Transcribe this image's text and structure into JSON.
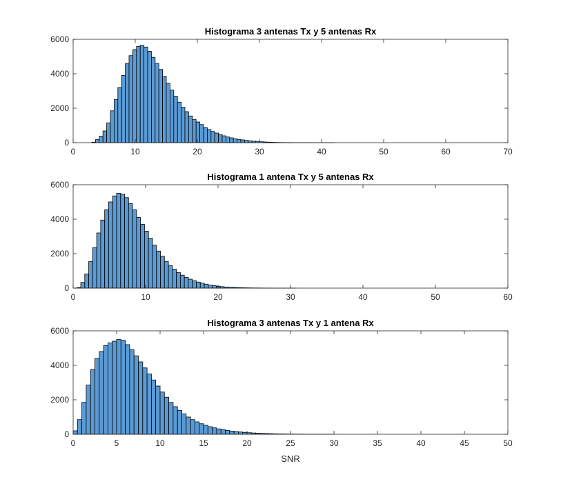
{
  "figure": {
    "background": "#ffffff"
  },
  "chart_data": [
    {
      "type": "bar",
      "subtype": "histogram",
      "title": "Histograma 3 antenas Tx y 5 antenas Rx",
      "xlabel": "",
      "ylabel": "",
      "xlim": [
        0,
        70
      ],
      "ylim": [
        0,
        6000
      ],
      "xticks": [
        0,
        10,
        20,
        30,
        40,
        50,
        60,
        70
      ],
      "yticks": [
        0,
        2000,
        4000,
        6000
      ],
      "grid": false,
      "bar_color": "#5b9bd5",
      "edge_color": "#000000",
      "bin_start": 3.0,
      "bin_width": 0.6,
      "values": [
        30,
        180,
        380,
        680,
        1150,
        1850,
        2500,
        3200,
        3900,
        4600,
        5050,
        5400,
        5580,
        5650,
        5550,
        5300,
        4950,
        4600,
        4250,
        3850,
        3450,
        3050,
        2700,
        2350,
        2050,
        1800,
        1550,
        1350,
        1200,
        1050,
        880,
        760,
        650,
        560,
        470,
        400,
        330,
        280,
        230,
        190,
        160,
        130,
        110,
        90,
        70,
        55,
        40,
        30,
        20,
        15,
        10,
        8,
        6,
        5,
        4,
        3,
        3,
        2,
        2,
        1,
        1,
        1,
        1,
        1,
        1
      ]
    },
    {
      "type": "bar",
      "subtype": "histogram",
      "title": "Histograma 1 antena Tx y 5 antenas Rx",
      "xlabel": "",
      "ylabel": "",
      "xlim": [
        0,
        60
      ],
      "ylim": [
        0,
        6000
      ],
      "xticks": [
        0,
        10,
        20,
        30,
        40,
        50,
        60
      ],
      "yticks": [
        0,
        2000,
        4000,
        6000
      ],
      "grid": false,
      "bar_color": "#5b9bd5",
      "edge_color": "#000000",
      "bin_start": 0.5,
      "bin_width": 0.55,
      "values": [
        30,
        330,
        820,
        1550,
        2350,
        3200,
        3950,
        4550,
        5000,
        5350,
        5500,
        5450,
        5250,
        4900,
        4550,
        4100,
        3700,
        3300,
        2900,
        2500,
        2150,
        1850,
        1550,
        1300,
        1100,
        900,
        750,
        620,
        520,
        430,
        350,
        290,
        230,
        180,
        140,
        110,
        85,
        65,
        50,
        40,
        30,
        24,
        18,
        14,
        10,
        8,
        6,
        5,
        4,
        3,
        2,
        2,
        2,
        1,
        1
      ]
    },
    {
      "type": "bar",
      "subtype": "histogram",
      "title": "Histograma 3 antenas Tx y 1 antena Rx",
      "xlabel": "SNR",
      "ylabel": "",
      "xlim": [
        0,
        50
      ],
      "ylim": [
        0,
        6000
      ],
      "xticks": [
        0,
        5,
        10,
        15,
        20,
        25,
        30,
        35,
        40,
        45,
        50
      ],
      "yticks": [
        0,
        2000,
        4000,
        6000
      ],
      "grid": false,
      "bar_color": "#5b9bd5",
      "edge_color": "#000000",
      "bin_start": 0.0,
      "bin_width": 0.5,
      "values": [
        200,
        850,
        1850,
        2850,
        3750,
        4400,
        4800,
        5150,
        5300,
        5400,
        5500,
        5450,
        5200,
        4900,
        4550,
        4200,
        3850,
        3500,
        3150,
        2800,
        2450,
        2150,
        1850,
        1600,
        1380,
        1180,
        1000,
        850,
        720,
        610,
        520,
        440,
        370,
        310,
        260,
        220,
        185,
        155,
        130,
        110,
        90,
        75,
        62,
        50,
        40,
        32,
        25,
        20,
        16,
        12,
        10,
        8,
        6,
        5,
        4,
        3,
        3,
        2,
        2,
        2
      ]
    }
  ]
}
